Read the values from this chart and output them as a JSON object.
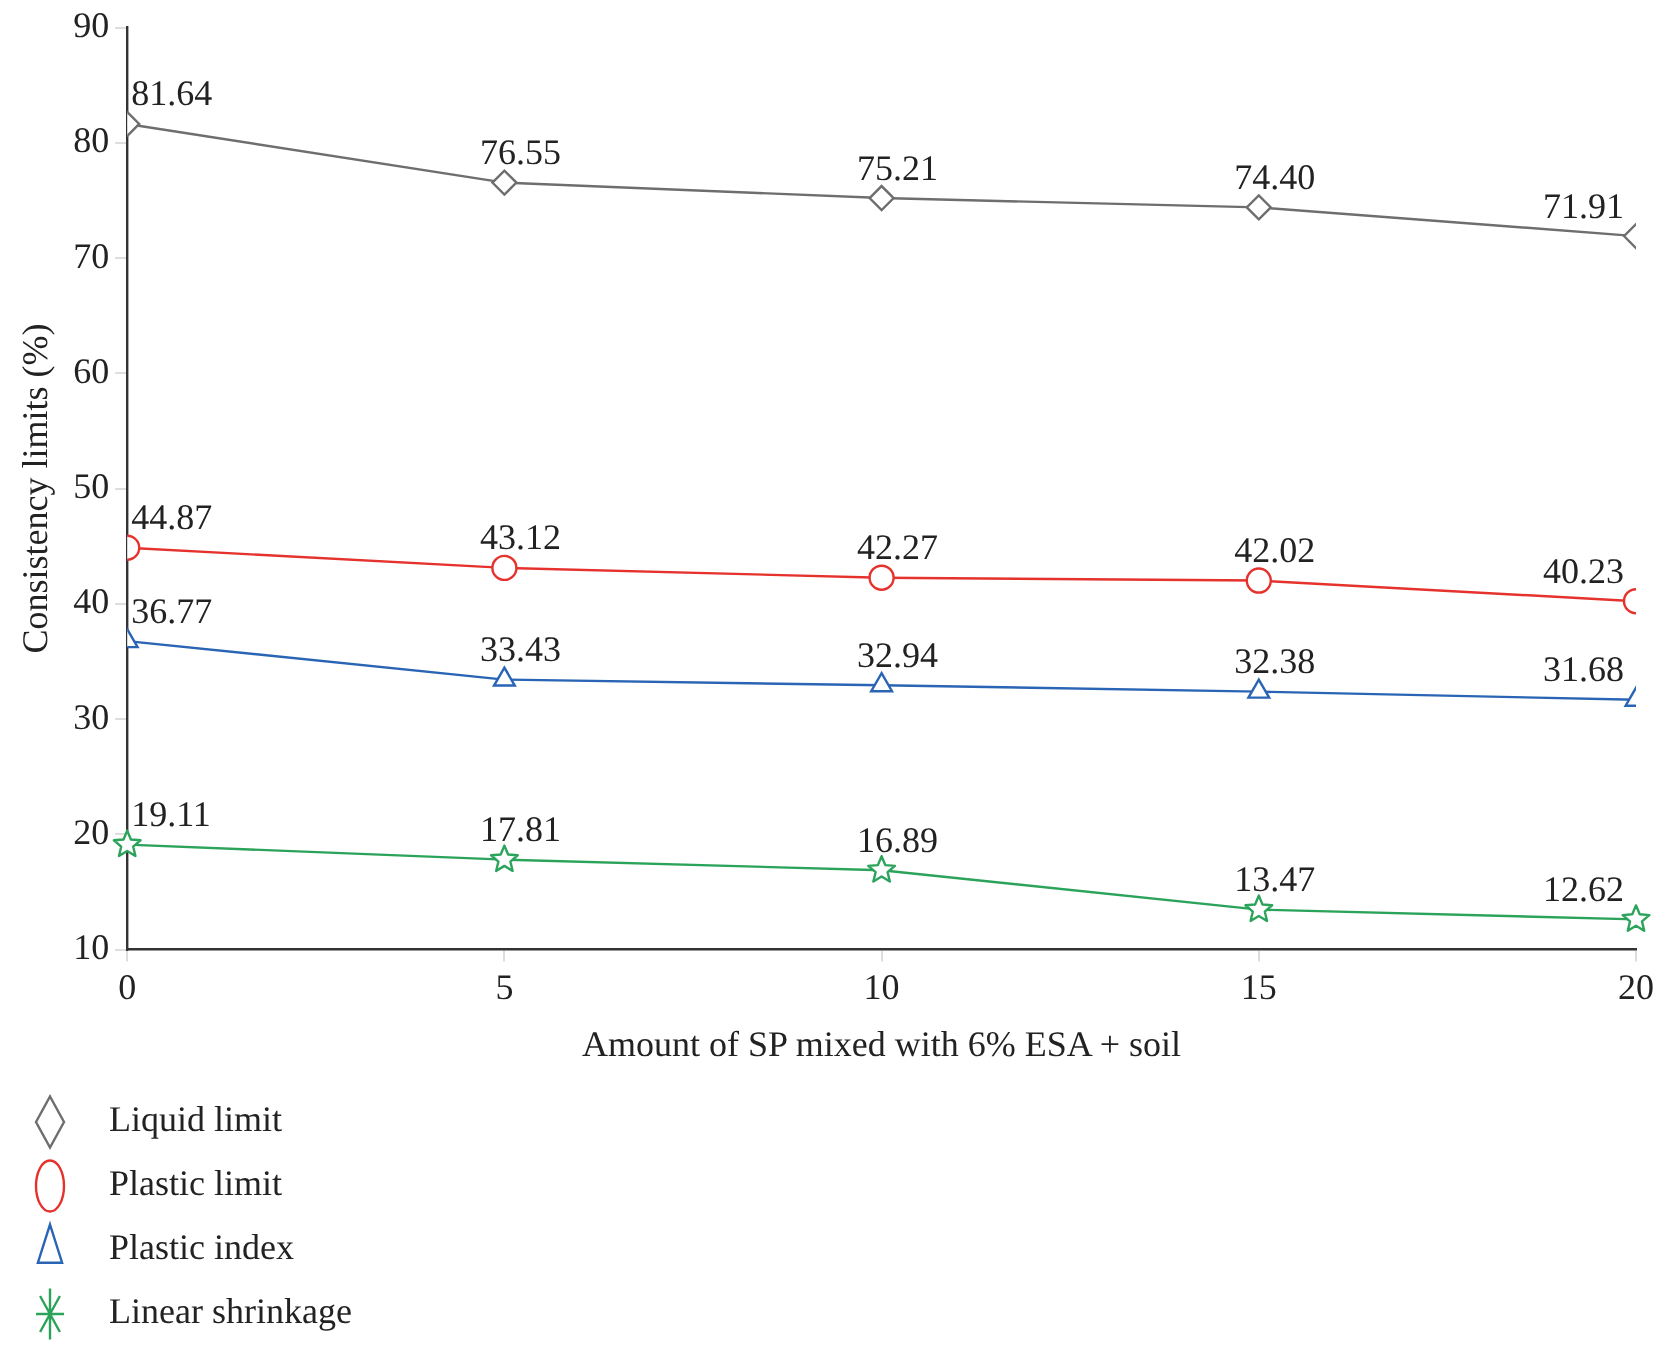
{
  "chart_data": {
    "type": "line",
    "xlabel": "Amount of SP mixed with 6% ESA + soil",
    "ylabel": "Consistency limits (%)",
    "x": [
      0,
      5,
      10,
      15,
      20
    ],
    "xlim": [
      0,
      20
    ],
    "xticks": [
      0,
      5,
      10,
      15,
      20
    ],
    "ylim": [
      10,
      90
    ],
    "yticks": [
      10,
      20,
      30,
      40,
      50,
      60,
      70,
      80,
      90
    ],
    "grid": false,
    "legend": "bottom",
    "line_style": "solid",
    "series": [
      {
        "name": "Liquid limit",
        "color": "#6e6e6e",
        "marker": "diamond",
        "values": [
          81.64,
          76.55,
          75.21,
          74.4,
          71.91
        ],
        "value_labels": [
          "81.64",
          "76.55",
          "75.21",
          "74.40",
          "71.91"
        ]
      },
      {
        "name": "Plastic limit",
        "color": "#e5322d",
        "marker": "circle",
        "values": [
          44.87,
          43.12,
          42.27,
          42.02,
          40.23
        ],
        "value_labels": [
          "44.87",
          "43.12",
          "42.27",
          "42.02",
          "40.23"
        ]
      },
      {
        "name": "Plastic index",
        "color": "#2a64b4",
        "marker": "triangle",
        "values": [
          36.77,
          33.43,
          32.94,
          32.38,
          31.68
        ],
        "value_labels": [
          "36.77",
          "33.43",
          "32.94",
          "32.38",
          "31.68"
        ]
      },
      {
        "name": "Linear shrinkage",
        "color": "#2ba35a",
        "marker": "star",
        "values": [
          19.11,
          17.81,
          16.89,
          13.47,
          12.62
        ],
        "value_labels": [
          "19.11",
          "17.81",
          "16.89",
          "13.47",
          "12.62"
        ]
      }
    ]
  }
}
